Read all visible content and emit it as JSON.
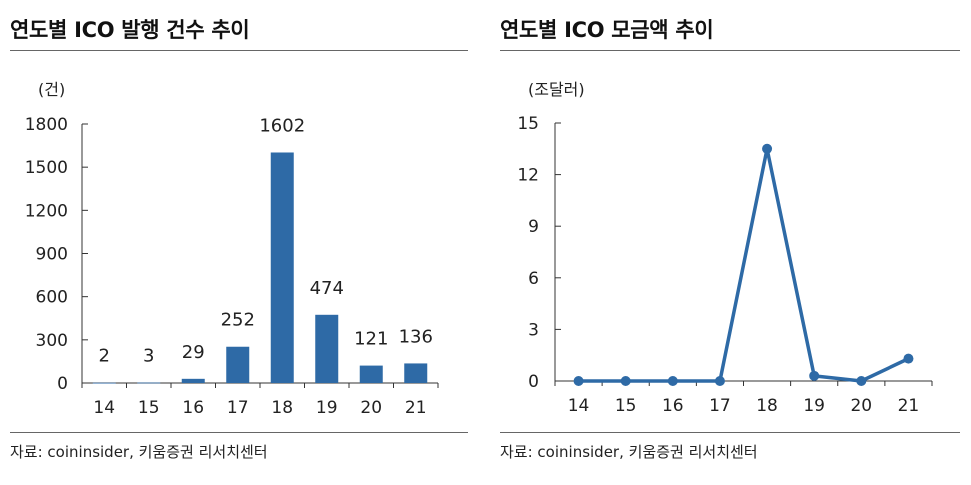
{
  "panels": {
    "left": {
      "title": "연도별 ICO 발행 건수 추이",
      "unit": "(건)",
      "source": "자료: coininsider, 키움증권 리서치센터"
    },
    "right": {
      "title": "연도별 ICO 모금액 추이",
      "unit": "(조달러)",
      "source": "자료: coininsider, 키움증권 리서치센터"
    }
  },
  "colors": {
    "series": "#2e6aa6",
    "axis": "#333333",
    "rule": "#666666"
  },
  "chart_data": [
    {
      "type": "bar",
      "title": "연도별 ICO 발행 건수 추이",
      "ylabel": "(건)",
      "categories": [
        "14",
        "15",
        "16",
        "17",
        "18",
        "19",
        "20",
        "21"
      ],
      "values": [
        2,
        3,
        29,
        252,
        1602,
        474,
        121,
        136
      ],
      "data_labels": [
        "2",
        "3",
        "29",
        "252",
        "1602",
        "474",
        "121",
        "136"
      ],
      "ylim": [
        0,
        1800
      ],
      "yticks": [
        0,
        300,
        600,
        900,
        1200,
        1500,
        1800
      ],
      "grid": false,
      "legend": "none"
    },
    {
      "type": "line",
      "title": "연도별 ICO 모금액 추이",
      "ylabel": "(조달러)",
      "categories": [
        "14",
        "15",
        "16",
        "17",
        "18",
        "19",
        "20",
        "21"
      ],
      "values": [
        0,
        0,
        0,
        0,
        13.5,
        0.3,
        0,
        1.3
      ],
      "ylim": [
        0,
        15
      ],
      "yticks": [
        0,
        3,
        6,
        9,
        12,
        15
      ],
      "grid": false,
      "legend": "none"
    }
  ]
}
